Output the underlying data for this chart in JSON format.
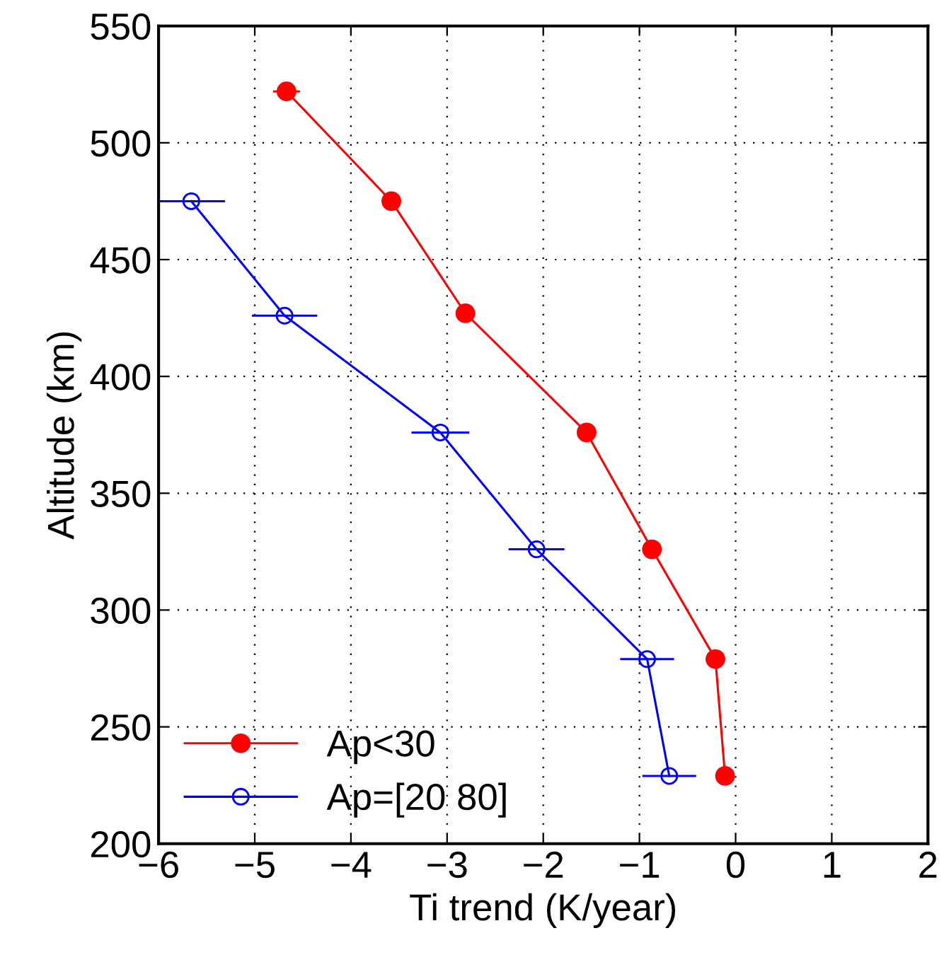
{
  "chart_data": {
    "type": "line",
    "xlabel": "Ti trend (K/year)",
    "ylabel": "Altitude (km)",
    "xlim": [
      -6,
      2
    ],
    "xticks": [
      -6,
      -5,
      -4,
      -3,
      -2,
      -1,
      0,
      1,
      2
    ],
    "ylim": [
      200,
      550
    ],
    "yticks": [
      200,
      250,
      300,
      350,
      400,
      450,
      500,
      550
    ],
    "grid": true,
    "legend": "bottom left",
    "line_style": "solid",
    "series": [
      {
        "name": "Ap<30",
        "color": "#ff0000",
        "marker": "circle",
        "x": [
          -4.67,
          -3.58,
          -2.81,
          -1.55,
          -0.87,
          -0.21,
          -0.11
        ],
        "values": [
          522,
          475,
          427,
          376,
          326,
          279,
          229
        ],
        "xerrors": [
          0.14,
          0.1,
          0.1,
          0.1,
          0.1,
          0.1,
          0.1
        ]
      },
      {
        "name": "Ap=[20 80]",
        "color": "#0000ff",
        "marker": "circle",
        "x": [
          -5.66,
          -4.69,
          -3.07,
          -2.07,
          -0.92,
          -0.69
        ],
        "values": [
          475,
          426,
          376,
          326,
          279,
          229
        ],
        "xerrors": [
          0.35,
          0.34,
          0.3,
          0.29,
          0.28,
          0.28
        ]
      }
    ]
  }
}
